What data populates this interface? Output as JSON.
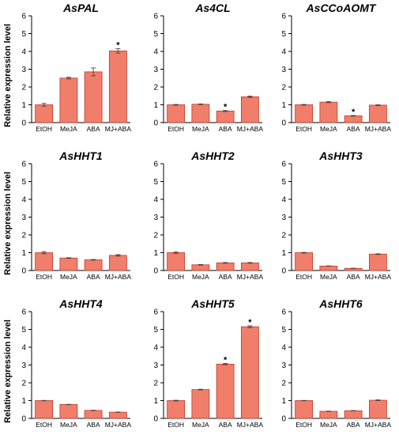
{
  "chart_data": [
    {
      "type": "bar",
      "title": "AsPAL",
      "ylabel": "Relative expression level",
      "categories": [
        "EtOH",
        "MeJA",
        "ABA",
        "MJ+ABA"
      ],
      "values": [
        1.0,
        2.5,
        2.85,
        4.03
      ],
      "errors": [
        0.08,
        0.05,
        0.22,
        0.12
      ],
      "significant": [
        false,
        false,
        false,
        true
      ],
      "ylim": [
        0,
        6
      ]
    },
    {
      "type": "bar",
      "title": "As4CL",
      "ylabel": "",
      "categories": [
        "EtOH",
        "MeJA",
        "ABA",
        "MJ+ABA"
      ],
      "values": [
        1.0,
        1.03,
        0.65,
        1.45
      ],
      "errors": [
        0.02,
        0.02,
        0.03,
        0.04
      ],
      "significant": [
        false,
        false,
        true,
        false
      ],
      "ylim": [
        0,
        6
      ]
    },
    {
      "type": "bar",
      "title": "AsCCoAOMT",
      "ylabel": "",
      "categories": [
        "EtOH",
        "MeJA",
        "ABA",
        "MJ+ABA"
      ],
      "values": [
        1.0,
        1.15,
        0.38,
        0.98
      ],
      "errors": [
        0.02,
        0.03,
        0.02,
        0.02
      ],
      "significant": [
        false,
        false,
        true,
        false
      ],
      "ylim": [
        0,
        6
      ]
    },
    {
      "type": "bar",
      "title": "AsHHT1",
      "ylabel": "Relative expression level",
      "categories": [
        "EtOH",
        "MeJA",
        "ABA",
        "MJ+ABA"
      ],
      "values": [
        1.0,
        0.7,
        0.6,
        0.85
      ],
      "errors": [
        0.06,
        0.02,
        0.02,
        0.04
      ],
      "significant": [
        false,
        false,
        false,
        false
      ],
      "ylim": [
        0,
        6
      ]
    },
    {
      "type": "bar",
      "title": "AsHHT2",
      "ylabel": "",
      "categories": [
        "EtOH",
        "MeJA",
        "ABA",
        "MJ+ABA"
      ],
      "values": [
        1.0,
        0.32,
        0.43,
        0.43
      ],
      "errors": [
        0.04,
        0.02,
        0.02,
        0.02
      ],
      "significant": [
        false,
        false,
        false,
        false
      ],
      "ylim": [
        0,
        6
      ]
    },
    {
      "type": "bar",
      "title": "AsHHT3",
      "ylabel": "",
      "categories": [
        "EtOH",
        "MeJA",
        "ABA",
        "MJ+ABA"
      ],
      "values": [
        1.0,
        0.25,
        0.12,
        0.92
      ],
      "errors": [
        0.02,
        0.01,
        0.01,
        0.02
      ],
      "significant": [
        false,
        false,
        false,
        false
      ],
      "ylim": [
        0,
        6
      ]
    },
    {
      "type": "bar",
      "title": "AsHHT4",
      "ylabel": "Relative expression level",
      "categories": [
        "EtOH",
        "MeJA",
        "ABA",
        "MJ+ABA"
      ],
      "values": [
        1.0,
        0.78,
        0.45,
        0.35
      ],
      "errors": [
        0.01,
        0.01,
        0.01,
        0.01
      ],
      "significant": [
        false,
        false,
        false,
        false
      ],
      "ylim": [
        0,
        6
      ]
    },
    {
      "type": "bar",
      "title": "AsHHT5",
      "ylabel": "",
      "categories": [
        "EtOH",
        "MeJA",
        "ABA",
        "MJ+ABA"
      ],
      "values": [
        1.0,
        1.62,
        3.05,
        5.15
      ],
      "errors": [
        0.02,
        0.02,
        0.04,
        0.05
      ],
      "significant": [
        false,
        false,
        true,
        true
      ],
      "ylim": [
        0,
        6
      ]
    },
    {
      "type": "bar",
      "title": "AsHHT6",
      "ylabel": "",
      "categories": [
        "EtOH",
        "MeJA",
        "ABA",
        "MJ+ABA"
      ],
      "values": [
        1.0,
        0.4,
        0.43,
        1.02
      ],
      "errors": [
        0.01,
        0.01,
        0.01,
        0.02
      ],
      "significant": [
        false,
        false,
        false,
        false
      ],
      "ylim": [
        0,
        6
      ]
    }
  ],
  "y_ticks": [
    "0",
    "1",
    "2",
    "3",
    "4",
    "5",
    "6"
  ],
  "significance_mark": "*",
  "colors": {
    "bar_fill": "#f07e6a",
    "bar_stroke": "#c0392b",
    "axis": "#000000"
  }
}
